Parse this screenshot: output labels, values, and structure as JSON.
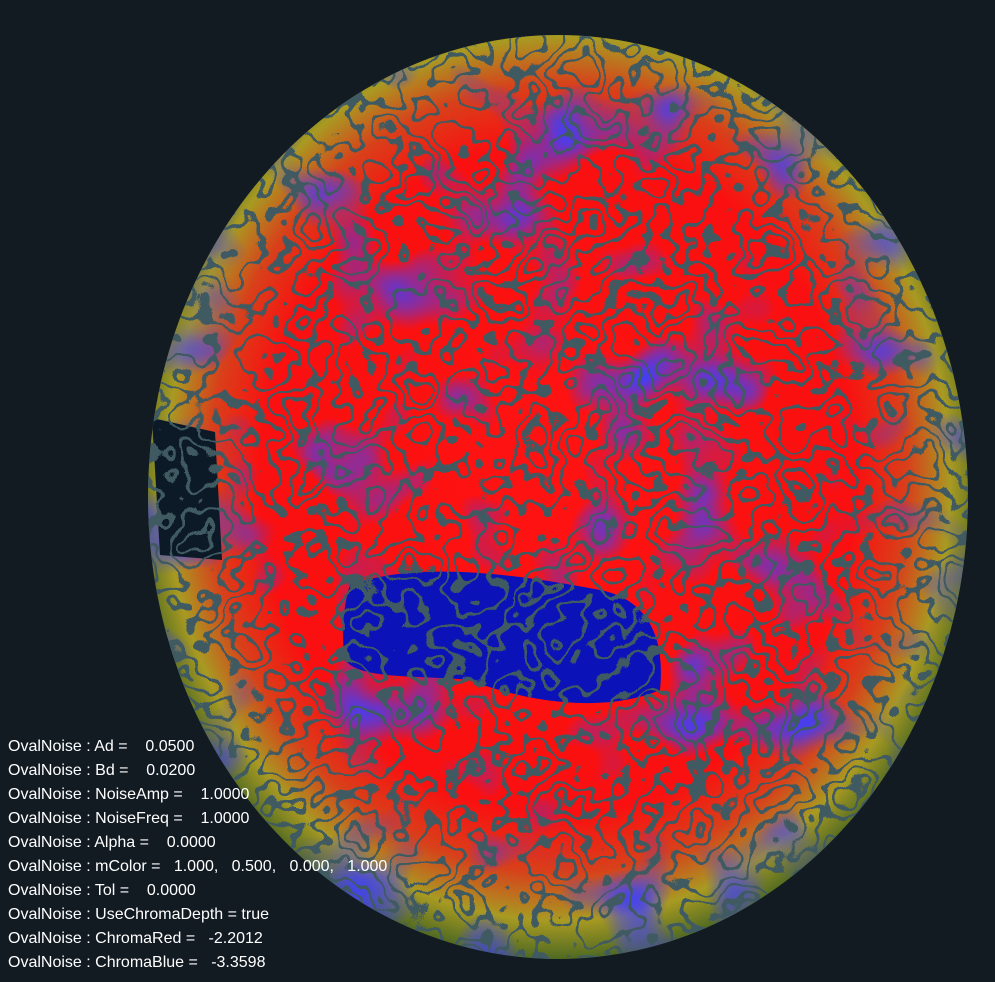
{
  "overlay": {
    "lines": [
      "OvalNoise : Ad =    0.0500",
      "OvalNoise : Bd =    0.0200",
      "OvalNoise : NoiseAmp =    1.0000",
      "OvalNoise : NoiseFreq =    1.0000",
      "OvalNoise : Alpha =    0.0000",
      "OvalNoise : mColor =   1.000,   0.500,   0.000,   1.000",
      "OvalNoise : Tol =    0.0000",
      "OvalNoise : UseChromaDepth = true",
      "OvalNoise : ChromaRed =   -2.2012",
      "OvalNoise : ChromaBlue =   -3.3598"
    ]
  }
}
